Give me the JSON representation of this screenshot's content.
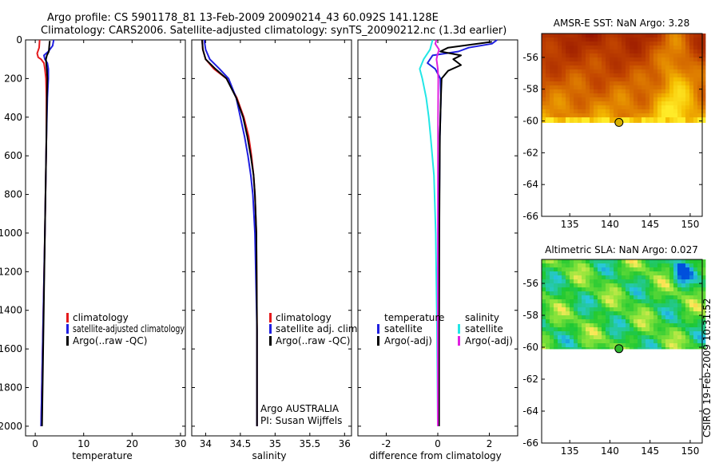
{
  "header": {
    "line1": "Argo profile: CS 5901178_81 13-Feb-2009 20090214_43 60.092S 141.128E",
    "line2": "Climatology: CARS2006. Satellite-adjusted climatology: synTS_20090212.nc (1.3d earlier)"
  },
  "credit": "CSIRO 19-Feb-2009 10:31:52",
  "colors": {
    "climatology": "#e41a1c",
    "satellite": "#1f1fe0",
    "argo": "#000000",
    "cyan": "#22e6e6",
    "magenta": "#e020e0"
  },
  "chart_data": [
    {
      "id": "temperature",
      "type": "line",
      "xlabel": "temperature",
      "ylabel": "",
      "xlim": [
        -2,
        31
      ],
      "ylim": [
        2050,
        0
      ],
      "xticks": [
        0,
        10,
        20,
        30
      ],
      "yticks": [
        0,
        200,
        400,
        600,
        800,
        1000,
        1200,
        1400,
        1600,
        1800,
        2000
      ],
      "legend": [
        "climatology",
        "satellite-adjusted climatology",
        "Argo(..raw -QC)"
      ],
      "series": [
        {
          "name": "climatology",
          "color": "#e41a1c",
          "depth": [
            0,
            40,
            70,
            90,
            100,
            120,
            150,
            200,
            300,
            500,
            1000,
            1500,
            2000
          ],
          "values": [
            0.9,
            0.8,
            0.4,
            0.6,
            1.2,
            1.8,
            2.0,
            2.2,
            2.3,
            2.3,
            2.0,
            1.6,
            1.2
          ]
        },
        {
          "name": "satellite-adjusted climatology",
          "color": "#1f1fe0",
          "depth": [
            0,
            30,
            60,
            80,
            100,
            120,
            150,
            200,
            300,
            500,
            1000,
            1500,
            2000
          ],
          "values": [
            3.8,
            3.6,
            2.7,
            1.8,
            2.0,
            2.5,
            2.7,
            2.7,
            2.5,
            2.3,
            2.0,
            1.6,
            1.2
          ]
        },
        {
          "name": "Argo(..raw -QC)",
          "color": "#000000",
          "depth": [
            5,
            30,
            60,
            80,
            100,
            130,
            160,
            200,
            300,
            500,
            1000,
            1500,
            2000
          ],
          "values": [
            3.0,
            2.9,
            2.8,
            2.4,
            2.2,
            2.3,
            2.4,
            2.5,
            2.4,
            2.3,
            2.0,
            1.7,
            1.4
          ]
        }
      ]
    },
    {
      "id": "salinity",
      "type": "line",
      "xlabel": "salinity",
      "ylabel": "",
      "xlim": [
        33.8,
        36.1
      ],
      "ylim": [
        2050,
        0
      ],
      "xticks": [
        34,
        34.5,
        35,
        35.5,
        36
      ],
      "legend": [
        "climatology",
        "satellite adj. clim.",
        "Argo(..raw -QC)"
      ],
      "annotation": [
        "Argo AUSTRALIA",
        "PI: Susan Wijffels"
      ],
      "series": [
        {
          "name": "climatology",
          "color": "#e41a1c",
          "depth": [
            0,
            50,
            100,
            150,
            200,
            300,
            400,
            500,
            600,
            700,
            800,
            1000,
            1500,
            2000
          ],
          "values": [
            33.95,
            33.96,
            34.0,
            34.12,
            34.3,
            34.45,
            34.55,
            34.62,
            34.66,
            34.69,
            34.71,
            34.73,
            34.74,
            34.74
          ]
        },
        {
          "name": "satellite adj. clim.",
          "color": "#1f1fe0",
          "depth": [
            0,
            50,
            100,
            150,
            200,
            300,
            400,
            500,
            600,
            700,
            800,
            1000,
            1500,
            2000
          ],
          "values": [
            33.98,
            34.0,
            34.06,
            34.2,
            34.33,
            34.44,
            34.5,
            34.56,
            34.61,
            34.65,
            34.68,
            34.71,
            34.74,
            34.74
          ]
        },
        {
          "name": "Argo(..raw -QC)",
          "color": "#000000",
          "depth": [
            0,
            50,
            100,
            150,
            200,
            300,
            400,
            500,
            600,
            700,
            800,
            1000,
            1500,
            2000
          ],
          "values": [
            33.95,
            33.96,
            34.0,
            34.14,
            34.3,
            34.44,
            34.54,
            34.6,
            34.65,
            34.69,
            34.71,
            34.73,
            34.74,
            34.74
          ]
        }
      ]
    },
    {
      "id": "difference",
      "type": "line",
      "xlabel": "difference from climatology",
      "ylabel": "",
      "xlim": [
        -3.1,
        3.1
      ],
      "ylim": [
        2050,
        0
      ],
      "xticks": [
        -2,
        0,
        2
      ],
      "legend": {
        "temperature_header": "temperature",
        "salinity_header": "salinity",
        "temperature_items": [
          "satellite",
          "Argo(-adj)"
        ],
        "salinity_items": [
          "satellite",
          "Argo(-adj)"
        ]
      },
      "series": [
        {
          "name": "temperature satellite",
          "color": "#1f1fe0",
          "depth": [
            0,
            20,
            40,
            60,
            80,
            120,
            150,
            200,
            300,
            500,
            1000,
            1500,
            2000
          ],
          "values": [
            2.3,
            2.1,
            1.2,
            0.8,
            -0.2,
            -0.4,
            -0.1,
            0.1,
            0.12,
            0.08,
            0.05,
            0.04,
            0.03
          ]
        },
        {
          "name": "temperature Argo(-adj)",
          "color": "#000000",
          "depth": [
            10,
            40,
            60,
            80,
            100,
            130,
            160,
            200,
            300,
            500,
            1000,
            1500,
            2000
          ],
          "values": [
            2.1,
            0.4,
            0.1,
            0.9,
            0.6,
            0.9,
            0.4,
            0.15,
            0.12,
            0.08,
            0.06,
            0.05,
            0.05
          ]
        },
        {
          "name": "salinity satellite",
          "color": "#22e6e6",
          "depth": [
            0,
            50,
            100,
            150,
            200,
            300,
            400,
            500,
            700,
            1000,
            1500,
            2000
          ],
          "values": [
            -0.2,
            -0.3,
            -0.55,
            -0.7,
            -0.6,
            -0.45,
            -0.35,
            -0.28,
            -0.15,
            -0.08,
            -0.03,
            0.0
          ]
        },
        {
          "name": "salinity Argo(-adj)",
          "color": "#e020e0",
          "depth": [
            0,
            20,
            50,
            80,
            100,
            150,
            200,
            400,
            1000,
            2000
          ],
          "values": [
            -0.05,
            -0.1,
            0.05,
            -0.02,
            -0.05,
            0.0,
            0.02,
            0.01,
            0.0,
            0.0
          ]
        }
      ]
    },
    {
      "id": "sst-map",
      "type": "heatmap",
      "title": "AMSR-E SST: NaN Argo: 3.28",
      "xlim": [
        131.5,
        151.5
      ],
      "ylim": [
        -66,
        -54.5
      ],
      "xticks": [
        135,
        140,
        145,
        150
      ],
      "yticks": [
        -56,
        -58,
        -60,
        -62,
        -64,
        -66
      ],
      "data_extent_lat": [
        -54.5,
        -60.1
      ],
      "marker": {
        "lon": 141.128,
        "lat": -60.092
      }
    },
    {
      "id": "sla-map",
      "type": "heatmap",
      "title": "Altimetric SLA: NaN Argo: 0.027",
      "xlim": [
        131.5,
        151.5
      ],
      "ylim": [
        -66,
        -54.5
      ],
      "xticks": [
        135,
        140,
        145,
        150
      ],
      "yticks": [
        -56,
        -58,
        -60,
        -62,
        -64,
        -66
      ],
      "data_extent_lat": [
        -54.5,
        -60.1
      ],
      "marker": {
        "lon": 141.128,
        "lat": -60.092
      }
    }
  ]
}
